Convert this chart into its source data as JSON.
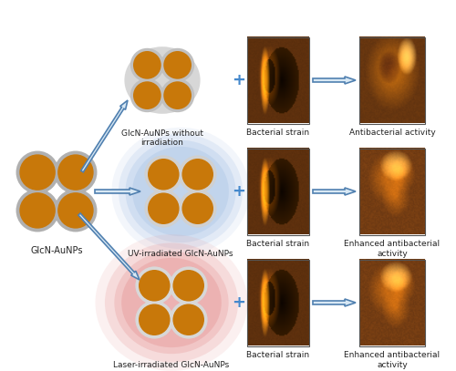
{
  "bg_color": "#ffffff",
  "gold_color": "#c8780a",
  "gold_edge": "#e8a030",
  "gray_edge": "#b0b0b0",
  "blue_bg": "#b0c8e8",
  "red_bg": "#e8a0a0",
  "arrow_color": "#5080b0",
  "arrow_fill": "#d8e8f4",
  "text_color": "#222222",
  "labels": {
    "source": "GlcN-AuNPs",
    "top": "GlcN-AuNPs without\nirradiation",
    "mid": "UV-irradiated GlcN-AuNPs",
    "bot": "Laser-irradiated GlcN-AuNPs",
    "bact1": "Bacterial strain",
    "bact2": "Bacterial strain",
    "bact3": "Bacterial strain",
    "anti1": "Antibacterial activity",
    "anti2": "Enhanced antibacterial\nactivity",
    "anti3": "Enhanced antibacterial\nactivity"
  },
  "font_size": 7.0
}
